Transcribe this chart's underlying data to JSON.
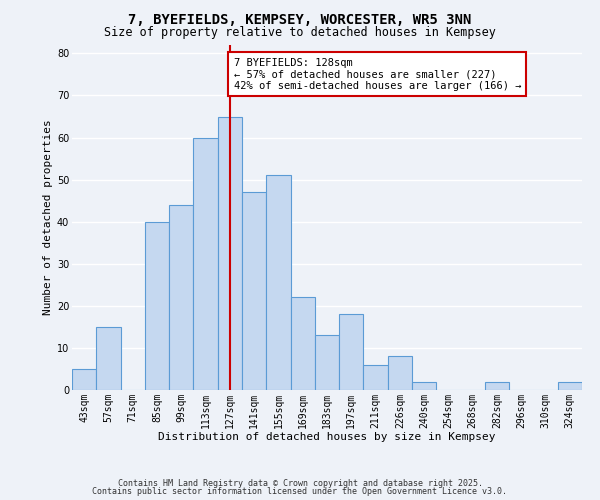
{
  "title": "7, BYEFIELDS, KEMPSEY, WORCESTER, WR5 3NN",
  "subtitle": "Size of property relative to detached houses in Kempsey",
  "xlabel": "Distribution of detached houses by size in Kempsey",
  "ylabel": "Number of detached properties",
  "categories": [
    "43sqm",
    "57sqm",
    "71sqm",
    "85sqm",
    "99sqm",
    "113sqm",
    "127sqm",
    "141sqm",
    "155sqm",
    "169sqm",
    "183sqm",
    "197sqm",
    "211sqm",
    "226sqm",
    "240sqm",
    "254sqm",
    "268sqm",
    "282sqm",
    "296sqm",
    "310sqm",
    "324sqm"
  ],
  "values": [
    5,
    15,
    0,
    40,
    44,
    60,
    65,
    47,
    51,
    22,
    13,
    18,
    6,
    8,
    2,
    0,
    0,
    2,
    0,
    0,
    2
  ],
  "bar_color": "#c5d8f0",
  "bar_edge_color": "#5b9bd5",
  "vline_x_index": 6,
  "vline_color": "#cc0000",
  "annotation_text": "7 BYEFIELDS: 128sqm\n← 57% of detached houses are smaller (227)\n42% of semi-detached houses are larger (166) →",
  "annotation_box_color": "#ffffff",
  "annotation_box_edge_color": "#cc0000",
  "ylim": [
    0,
    82
  ],
  "yticks": [
    0,
    10,
    20,
    30,
    40,
    50,
    60,
    70,
    80
  ],
  "footer_line1": "Contains HM Land Registry data © Crown copyright and database right 2025.",
  "footer_line2": "Contains public sector information licensed under the Open Government Licence v3.0.",
  "background_color": "#eef2f8",
  "grid_color": "#ffffff",
  "title_fontsize": 10,
  "subtitle_fontsize": 8.5,
  "axis_label_fontsize": 8,
  "tick_fontsize": 7,
  "annotation_fontsize": 7.5,
  "footer_fontsize": 6
}
